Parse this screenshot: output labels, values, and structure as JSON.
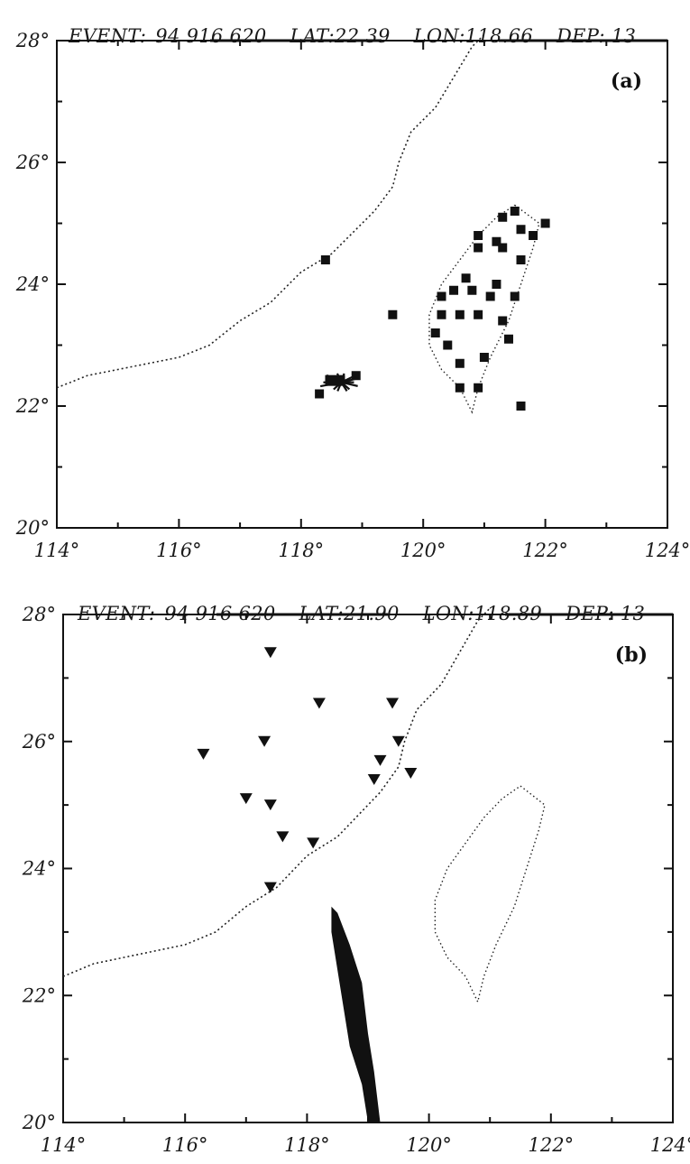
{
  "panels": [
    {
      "id": "a",
      "event_label": "EVENT:",
      "event": "94 916 620",
      "lat": "LAT:22.39",
      "lon": "LON:118.66",
      "dep": "DEP: 13",
      "label": "(a)",
      "x_ticks": [
        "114°",
        "116°",
        "118°",
        "120°",
        "122°",
        "124°"
      ],
      "y_ticks": [
        "28°",
        "26°",
        "24°",
        "22°",
        "20°"
      ],
      "x_range": [
        114,
        124
      ],
      "y_range": [
        20,
        28
      ],
      "epicenter": {
        "lon": 118.66,
        "lat": 22.39
      },
      "stations": [
        [
          121.5,
          25.2
        ],
        [
          121.3,
          25.1
        ],
        [
          121.6,
          24.9
        ],
        [
          120.9,
          24.8
        ],
        [
          121.2,
          24.7
        ],
        [
          121.8,
          24.8
        ],
        [
          122.0,
          25.0
        ],
        [
          120.9,
          24.6
        ],
        [
          121.3,
          24.6
        ],
        [
          121.6,
          24.4
        ],
        [
          120.7,
          24.1
        ],
        [
          121.2,
          24.0
        ],
        [
          120.3,
          23.8
        ],
        [
          120.5,
          23.9
        ],
        [
          120.8,
          23.9
        ],
        [
          121.1,
          23.8
        ],
        [
          121.5,
          23.8
        ],
        [
          120.3,
          23.5
        ],
        [
          120.6,
          23.5
        ],
        [
          120.9,
          23.5
        ],
        [
          121.3,
          23.4
        ],
        [
          120.2,
          23.2
        ],
        [
          121.4,
          23.1
        ],
        [
          120.4,
          23.0
        ],
        [
          120.6,
          22.7
        ],
        [
          121.0,
          22.8
        ],
        [
          120.6,
          22.3
        ],
        [
          120.9,
          22.3
        ],
        [
          121.6,
          22.0
        ],
        [
          119.5,
          23.5
        ],
        [
          118.4,
          24.4
        ],
        [
          118.3,
          22.2
        ],
        [
          118.9,
          22.5
        ]
      ]
    },
    {
      "id": "b",
      "event_label": "EVENT:",
      "event": "94 916 620",
      "lat": "LAT:21.90",
      "lon": "LON:118.89",
      "dep": "DEP: 13",
      "label": "(b)",
      "x_ticks": [
        "114°",
        "116°",
        "118°",
        "120°",
        "122°",
        "124°"
      ],
      "y_ticks": [
        "28°",
        "26°",
        "24°",
        "22°",
        "20°"
      ],
      "x_range": [
        114,
        124
      ],
      "y_range": [
        20,
        28
      ],
      "epicenter": {
        "lon": 118.89,
        "lat": 21.9
      },
      "stations": [
        [
          117.4,
          27.4
        ],
        [
          118.2,
          26.6
        ],
        [
          119.4,
          26.6
        ],
        [
          116.3,
          25.8
        ],
        [
          117.3,
          26.0
        ],
        [
          119.5,
          26.0
        ],
        [
          119.2,
          25.7
        ],
        [
          119.7,
          25.5
        ],
        [
          117.0,
          25.1
        ],
        [
          117.4,
          25.0
        ],
        [
          119.1,
          25.4
        ],
        [
          117.6,
          24.5
        ],
        [
          118.1,
          24.4
        ],
        [
          117.4,
          23.7
        ]
      ]
    }
  ]
}
